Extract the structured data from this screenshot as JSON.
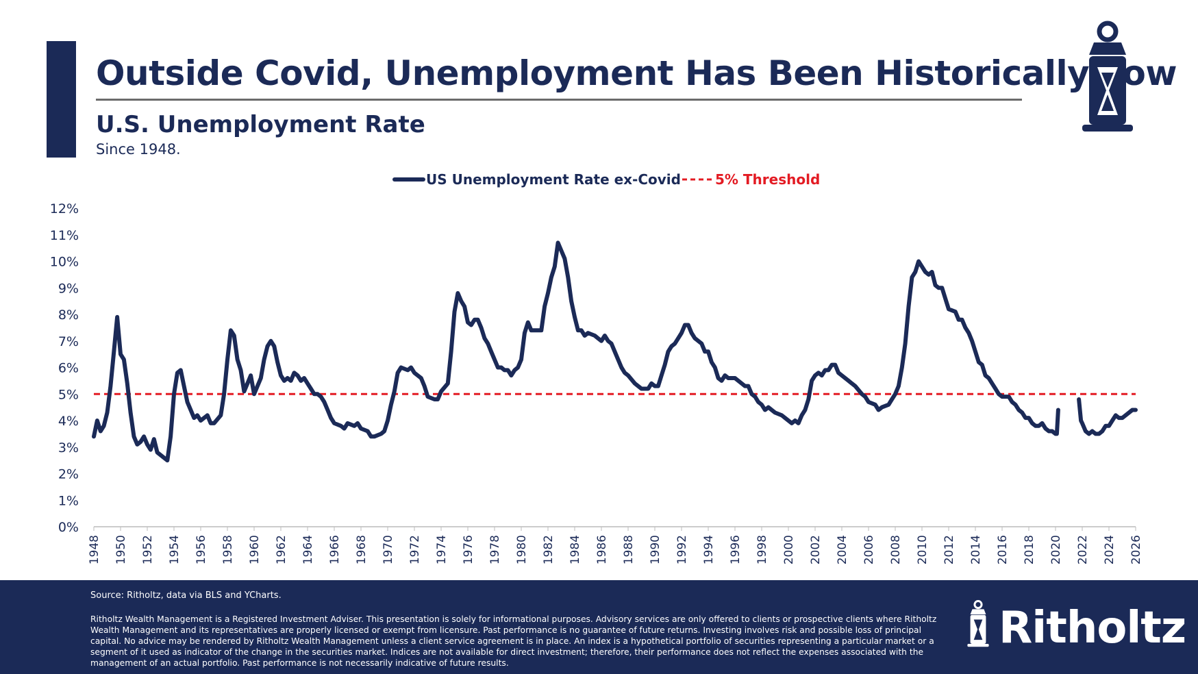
{
  "header": {
    "title": "Outside Covid, Unemployment Has Been Historically Low"
  },
  "chart_data": {
    "type": "line",
    "title": "U.S. Unemployment Rate",
    "subtitle": "Since 1948.",
    "x": [
      1948.0,
      1948.25,
      1948.5,
      1948.75,
      1949.0,
      1949.25,
      1949.5,
      1949.75,
      1950.0,
      1950.25,
      1950.5,
      1950.75,
      1951.0,
      1951.25,
      1951.5,
      1951.75,
      1952.0,
      1952.25,
      1952.5,
      1952.75,
      1953.0,
      1953.5,
      1953.75,
      1954.0,
      1954.25,
      1954.5,
      1954.75,
      1955.0,
      1955.5,
      1955.75,
      1956.0,
      1956.5,
      1956.75,
      1957.0,
      1957.5,
      1957.75,
      1958.0,
      1958.25,
      1958.5,
      1958.75,
      1959.0,
      1959.25,
      1959.5,
      1959.75,
      1960.0,
      1960.25,
      1960.5,
      1960.75,
      1961.0,
      1961.25,
      1961.5,
      1961.75,
      1962.0,
      1962.25,
      1962.5,
      1962.75,
      1963.0,
      1963.25,
      1963.5,
      1963.75,
      1964.0,
      1964.25,
      1964.5,
      1964.75,
      1965.0,
      1965.25,
      1965.5,
      1965.75,
      1966.0,
      1966.5,
      1966.75,
      1967.0,
      1967.5,
      1967.75,
      1968.0,
      1968.5,
      1968.75,
      1969.0,
      1969.5,
      1969.75,
      1970.0,
      1970.25,
      1970.5,
      1970.75,
      1971.0,
      1971.5,
      1971.75,
      1972.0,
      1972.5,
      1972.75,
      1973.0,
      1973.5,
      1973.75,
      1974.0,
      1974.5,
      1974.75,
      1975.0,
      1975.25,
      1975.5,
      1975.75,
      1976.0,
      1976.25,
      1976.5,
      1976.75,
      1977.0,
      1977.25,
      1977.5,
      1977.75,
      1978.0,
      1978.25,
      1978.5,
      1978.75,
      1979.0,
      1979.25,
      1979.5,
      1979.75,
      1980.0,
      1980.25,
      1980.5,
      1980.75,
      1981.0,
      1981.25,
      1981.5,
      1981.75,
      1982.0,
      1982.25,
      1982.5,
      1982.75,
      1983.0,
      1983.25,
      1983.5,
      1983.75,
      1984.0,
      1984.25,
      1984.5,
      1984.75,
      1985.0,
      1985.5,
      1985.75,
      1986.0,
      1986.25,
      1986.5,
      1986.75,
      1987.0,
      1987.25,
      1987.5,
      1987.75,
      1988.0,
      1988.5,
      1988.75,
      1989.0,
      1989.5,
      1989.75,
      1990.0,
      1990.25,
      1990.5,
      1990.75,
      1991.0,
      1991.25,
      1991.5,
      1991.75,
      1992.0,
      1992.25,
      1992.5,
      1992.75,
      1993.0,
      1993.5,
      1993.75,
      1994.0,
      1994.25,
      1994.5,
      1994.75,
      1995.0,
      1995.25,
      1995.5,
      1995.75,
      1996.0,
      1996.5,
      1996.75,
      1997.0,
      1997.25,
      1997.5,
      1997.75,
      1998.0,
      1998.25,
      1998.5,
      1998.75,
      1999.0,
      1999.5,
      1999.75,
      2000.0,
      2000.25,
      2000.5,
      2000.75,
      2001.0,
      2001.25,
      2001.5,
      2001.75,
      2002.0,
      2002.25,
      2002.5,
      2002.75,
      2003.0,
      2003.25,
      2003.5,
      2003.75,
      2004.0,
      2004.5,
      2004.75,
      2005.0,
      2005.5,
      2005.75,
      2006.0,
      2006.5,
      2006.75,
      2007.0,
      2007.5,
      2007.75,
      2008.0,
      2008.25,
      2008.5,
      2008.75,
      2009.0,
      2009.25,
      2009.5,
      2009.75,
      2010.0,
      2010.25,
      2010.5,
      2010.75,
      2011.0,
      2011.25,
      2011.5,
      2011.75,
      2012.0,
      2012.5,
      2012.75,
      2013.0,
      2013.25,
      2013.5,
      2013.75,
      2014.0,
      2014.25,
      2014.5,
      2014.75,
      2015.0,
      2015.25,
      2015.5,
      2015.75,
      2016.0,
      2016.5,
      2016.75,
      2017.0,
      2017.25,
      2017.5,
      2017.75,
      2018.0,
      2018.25,
      2018.5,
      2018.75,
      2019.0,
      2019.25,
      2019.5,
      2019.75,
      2020.0,
      2020.1,
      2020.2,
      2021.0,
      2021.75,
      2021.9,
      2022.0,
      2022.25,
      2022.5,
      2022.75,
      2023.0,
      2023.25,
      2023.5,
      2023.75,
      2024.0,
      2024.25,
      2024.5,
      2024.75,
      2025.0,
      2025.25,
      2025.5,
      2025.75,
      2026.0
    ],
    "series": [
      {
        "name": "US Unemployment Rate ex-Covid",
        "color": "#1b2a57",
        "values": [
          3.4,
          4.0,
          3.6,
          3.8,
          4.3,
          5.3,
          6.6,
          7.9,
          6.5,
          6.3,
          5.4,
          4.3,
          3.4,
          3.1,
          3.2,
          3.4,
          3.1,
          2.9,
          3.3,
          2.8,
          2.7,
          2.5,
          3.4,
          5.0,
          5.8,
          5.9,
          5.3,
          4.7,
          4.1,
          4.2,
          4.0,
          4.2,
          3.9,
          3.9,
          4.2,
          5.0,
          6.3,
          7.4,
          7.2,
          6.3,
          5.9,
          5.1,
          5.4,
          5.7,
          5.0,
          5.3,
          5.6,
          6.3,
          6.8,
          7.0,
          6.8,
          6.2,
          5.7,
          5.5,
          5.6,
          5.5,
          5.8,
          5.7,
          5.5,
          5.6,
          5.4,
          5.2,
          5.0,
          5.0,
          4.9,
          4.7,
          4.4,
          4.1,
          3.9,
          3.8,
          3.7,
          3.9,
          3.8,
          3.9,
          3.7,
          3.6,
          3.4,
          3.4,
          3.5,
          3.6,
          4.0,
          4.6,
          5.1,
          5.8,
          6.0,
          5.9,
          6.0,
          5.8,
          5.6,
          5.3,
          4.9,
          4.8,
          4.8,
          5.1,
          5.4,
          6.6,
          8.1,
          8.8,
          8.5,
          8.3,
          7.7,
          7.6,
          7.8,
          7.8,
          7.5,
          7.1,
          6.9,
          6.6,
          6.3,
          6.0,
          6.0,
          5.9,
          5.9,
          5.7,
          5.9,
          6.0,
          6.3,
          7.3,
          7.7,
          7.4,
          7.4,
          7.4,
          7.4,
          8.3,
          8.8,
          9.4,
          9.8,
          10.7,
          10.4,
          10.1,
          9.4,
          8.5,
          7.9,
          7.4,
          7.4,
          7.2,
          7.3,
          7.2,
          7.1,
          7.0,
          7.2,
          7.0,
          6.9,
          6.6,
          6.3,
          6.0,
          5.8,
          5.7,
          5.4,
          5.3,
          5.2,
          5.2,
          5.4,
          5.3,
          5.3,
          5.7,
          6.1,
          6.6,
          6.8,
          6.9,
          7.1,
          7.3,
          7.6,
          7.6,
          7.3,
          7.1,
          6.9,
          6.6,
          6.6,
          6.2,
          6.0,
          5.6,
          5.5,
          5.7,
          5.6,
          5.6,
          5.6,
          5.4,
          5.3,
          5.3,
          5.0,
          4.9,
          4.7,
          4.6,
          4.4,
          4.5,
          4.4,
          4.3,
          4.2,
          4.1,
          4.0,
          3.9,
          4.0,
          3.9,
          4.2,
          4.4,
          4.8,
          5.5,
          5.7,
          5.8,
          5.7,
          5.9,
          5.9,
          6.1,
          6.1,
          5.8,
          5.7,
          5.5,
          5.4,
          5.3,
          5.0,
          4.9,
          4.7,
          4.6,
          4.4,
          4.5,
          4.6,
          4.8,
          5.0,
          5.3,
          6.0,
          6.9,
          8.3,
          9.4,
          9.6,
          10.0,
          9.8,
          9.6,
          9.5,
          9.6,
          9.1,
          9.0,
          9.0,
          8.6,
          8.2,
          8.1,
          7.8,
          7.8,
          7.5,
          7.3,
          7.0,
          6.6,
          6.2,
          6.1,
          5.7,
          5.6,
          5.4,
          5.2,
          5.0,
          4.9,
          4.9,
          4.7,
          4.6,
          4.4,
          4.3,
          4.1,
          4.1,
          3.9,
          3.8,
          3.8,
          3.9,
          3.7,
          3.6,
          3.6,
          3.5,
          3.5,
          4.4,
          null,
          4.8,
          4.0,
          3.9,
          3.6,
          3.5,
          3.6,
          3.5,
          3.5,
          3.6,
          3.8,
          3.8,
          4.0,
          4.2,
          4.1,
          4.1,
          4.2,
          4.3,
          4.4,
          4.4
        ]
      }
    ],
    "threshold": {
      "name": "5% Threshold",
      "value": 5,
      "color": "#e31b23"
    },
    "xlim": [
      1948,
      2026
    ],
    "xticks": [
      1948,
      1950,
      1952,
      1954,
      1956,
      1958,
      1960,
      1962,
      1964,
      1966,
      1968,
      1970,
      1972,
      1974,
      1976,
      1978,
      1980,
      1982,
      1984,
      1986,
      1988,
      1990,
      1992,
      1994,
      1996,
      1998,
      2000,
      2002,
      2004,
      2006,
      2008,
      2010,
      2012,
      2014,
      2016,
      2018,
      2020,
      2022,
      2024,
      2026
    ],
    "ylim": [
      0,
      12
    ],
    "yticks": [
      {
        "value": 0,
        "label": "0%"
      },
      {
        "value": 1,
        "label": "1%"
      },
      {
        "value": 2,
        "label": "2%"
      },
      {
        "value": 3,
        "label": "3%"
      },
      {
        "value": 4,
        "label": "4%"
      },
      {
        "value": 5,
        "label": "5%"
      },
      {
        "value": 6,
        "label": "6%"
      },
      {
        "value": 7,
        "label": "7%"
      },
      {
        "value": 8,
        "label": "8%"
      },
      {
        "value": 9,
        "label": "9%"
      },
      {
        "value": 10,
        "label": "10%"
      },
      {
        "value": 11,
        "label": "11%"
      },
      {
        "value": 12,
        "label": "12%"
      }
    ],
    "grid": false,
    "legend": "top"
  },
  "footer": {
    "source": "Source: Ritholtz, data via BLS and YCharts.",
    "disclaimer": "Ritholtz Wealth Management is a Registered Investment Adviser. This presentation is solely for informational purposes. Advisory services are only offered to clients or prospective clients where Ritholtz Wealth Management and its representatives are properly licensed or exempt from licensure. Past performance is no guarantee of future returns. Investing involves risk and possible loss of principal capital. No advice may be rendered by Ritholtz Wealth Management unless a client service agreement is in place. An index is a hypothetical portfolio of securities representing a particular market or a segment of it used as indicator of the change in the securities market. Indices are not available for direct investment; therefore, their performance does not reflect the expenses associated with the management of an actual portfolio. Past performance is not necessarily indicative of future results.",
    "brand": "Ritholtz"
  }
}
